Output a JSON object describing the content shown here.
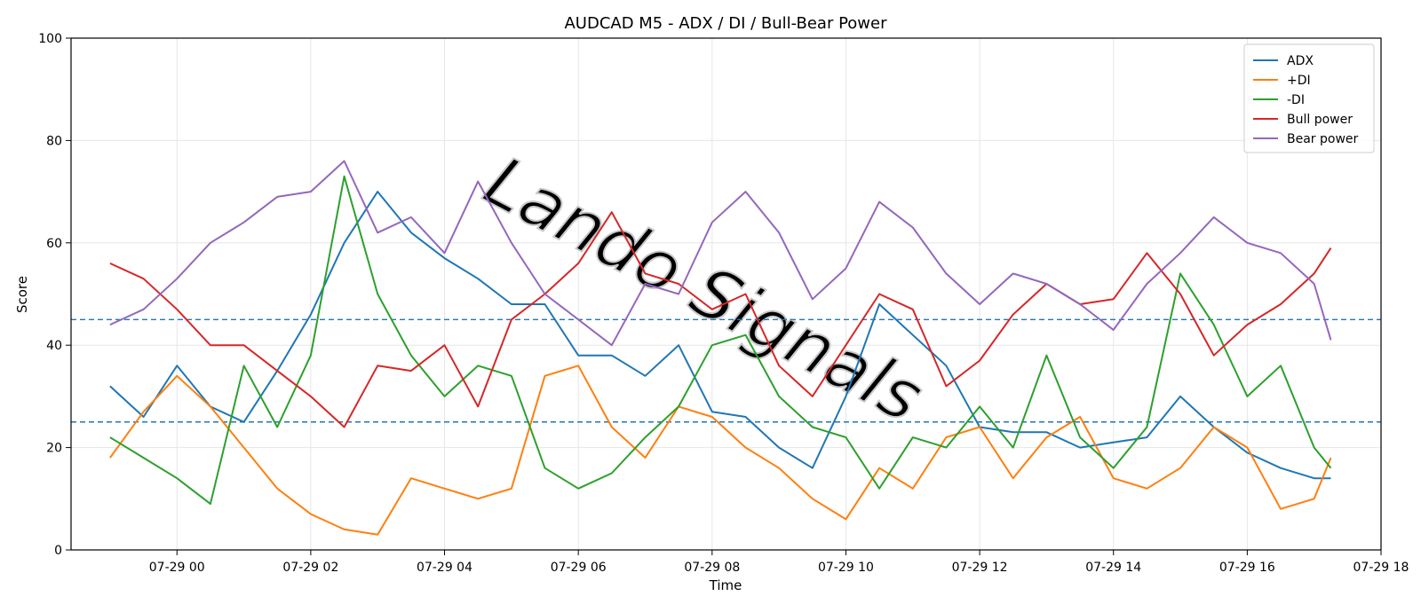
{
  "chart_data": {
    "type": "line",
    "title": "AUDCAD M5 - ADX / DI / Bull-Bear Power",
    "xlabel": "Time",
    "ylabel": "Score",
    "ylim": [
      0,
      100
    ],
    "xlim": [
      "07-28 22:25",
      "07-29 18:00"
    ],
    "x_ticks": [
      "07-29 00",
      "07-29 02",
      "07-29 04",
      "07-29 06",
      "07-29 08",
      "07-29 10",
      "07-29 12",
      "07-29 14",
      "07-29 16",
      "07-29 18"
    ],
    "y_ticks": [
      0,
      20,
      40,
      60,
      80,
      100
    ],
    "grid": true,
    "legend_position": "top-right",
    "x": [
      "07-28 23:00",
      "07-28 23:30",
      "07-29 00:00",
      "07-29 00:30",
      "07-29 01:00",
      "07-29 01:30",
      "07-29 02:00",
      "07-29 02:30",
      "07-29 03:00",
      "07-29 03:30",
      "07-29 04:00",
      "07-29 04:30",
      "07-29 05:00",
      "07-29 05:30",
      "07-29 06:00",
      "07-29 06:30",
      "07-29 07:00",
      "07-29 07:30",
      "07-29 08:00",
      "07-29 08:30",
      "07-29 09:00",
      "07-29 09:30",
      "07-29 10:00",
      "07-29 10:30",
      "07-29 11:00",
      "07-29 11:30",
      "07-29 12:00",
      "07-29 12:30",
      "07-29 13:00",
      "07-29 13:30",
      "07-29 14:00",
      "07-29 14:30",
      "07-29 15:00",
      "07-29 15:30",
      "07-29 16:00",
      "07-29 16:30",
      "07-29 17:00",
      "07-29 17:15"
    ],
    "series": [
      {
        "name": "ADX",
        "color": "#1f77b4",
        "values": [
          32,
          26,
          36,
          28,
          25,
          35,
          46,
          60,
          70,
          62,
          57,
          53,
          48,
          48,
          38,
          38,
          34,
          40,
          27,
          26,
          20,
          16,
          30,
          48,
          42,
          36,
          24,
          23,
          23,
          20,
          21,
          22,
          30,
          24,
          19,
          16,
          14,
          14
        ]
      },
      {
        "name": "+DI",
        "color": "#ff7f0e",
        "values": [
          18,
          27,
          34,
          28,
          20,
          12,
          7,
          4,
          3,
          14,
          12,
          10,
          12,
          34,
          36,
          24,
          18,
          28,
          26,
          20,
          16,
          10,
          6,
          16,
          12,
          22,
          24,
          14,
          22,
          26,
          14,
          12,
          16,
          24,
          20,
          8,
          10,
          18
        ]
      },
      {
        "name": "-DI",
        "color": "#2ca02c",
        "values": [
          22,
          18,
          14,
          9,
          36,
          24,
          38,
          73,
          50,
          38,
          30,
          36,
          34,
          16,
          12,
          15,
          22,
          28,
          40,
          42,
          30,
          24,
          22,
          12,
          22,
          20,
          28,
          20,
          38,
          22,
          16,
          24,
          54,
          44,
          30,
          36,
          20,
          16
        ]
      },
      {
        "name": "Bull power",
        "color": "#d62728",
        "values": [
          56,
          53,
          47,
          40,
          40,
          35,
          30,
          24,
          36,
          35,
          40,
          28,
          45,
          50,
          56,
          66,
          54,
          52,
          47,
          50,
          36,
          30,
          40,
          50,
          47,
          32,
          37,
          46,
          52,
          48,
          49,
          58,
          50,
          38,
          44,
          48,
          54,
          59
        ]
      },
      {
        "name": "Bear power",
        "color": "#9467bd",
        "values": [
          44,
          47,
          53,
          60,
          64,
          69,
          70,
          76,
          62,
          65,
          58,
          72,
          60,
          50,
          45,
          40,
          52,
          50,
          64,
          70,
          62,
          49,
          55,
          68,
          63,
          54,
          48,
          54,
          52,
          48,
          43,
          52,
          58,
          65,
          60,
          58,
          52,
          41
        ]
      }
    ],
    "reference_lines": [
      {
        "y": 45,
        "color": "#1f77b4",
        "style": "dashed"
      },
      {
        "y": 25,
        "color": "#1f77b4",
        "style": "dashed"
      }
    ]
  },
  "watermark": "Lando Signals"
}
